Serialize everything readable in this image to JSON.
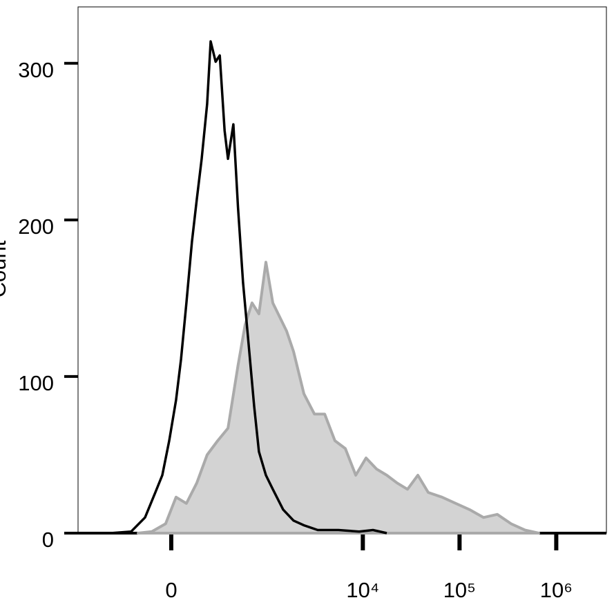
{
  "chart_data": {
    "type": "histogram-overlay",
    "y_label": "Count",
    "xscale": "asinh",
    "xlim": [
      -950,
      3300000
    ],
    "ylim": [
      0,
      336
    ],
    "xticks": [
      0,
      {
        "value": 10000,
        "label": "10⁴"
      },
      {
        "value": 100000,
        "label": "10⁵"
      },
      {
        "value": 1000000,
        "label": "10⁶"
      }
    ],
    "yticks": [
      0,
      100,
      200,
      300
    ],
    "series": [
      {
        "color": "#000000",
        "filled": false,
        "x": [
          -420,
          -231,
          -139,
          -81,
          -45,
          -10,
          24,
          49,
          77,
          107,
          135,
          165,
          201,
          226,
          264,
          299,
          343,
          376,
          435,
          491,
          558,
          644,
          738,
          830,
          984,
          1164,
          1494,
          1914,
          2454,
          3413,
          5591,
          9165,
          12730,
          17680
        ],
        "values": [
          0,
          1,
          10,
          26,
          37,
          59,
          85,
          111,
          147,
          186,
          213,
          239,
          274,
          314,
          301,
          305,
          257,
          239,
          261,
          208,
          160,
          120,
          81,
          52,
          37,
          28,
          15,
          8,
          5,
          2,
          2,
          1,
          2,
          0
        ]
      },
      {
        "color": "#aaaaaa",
        "fill": "#d3d3d3",
        "filled": true,
        "x": [
          -183,
          -100,
          -28,
          24,
          77,
          135,
          201,
          281,
          376,
          491,
          589,
          700,
          830,
          984,
          1164,
          1375,
          1624,
          1914,
          2454,
          3156,
          4027,
          5141,
          6594,
          8444,
          10800,
          13820,
          17680,
          22630,
          28970,
          37090,
          47450,
          65840,
          91540,
          127100,
          176600,
          245400,
          341300,
          474000,
          658800
        ],
        "values": [
          0,
          1,
          6,
          23,
          19,
          32,
          50,
          59,
          67,
          107,
          133,
          147,
          140,
          173,
          147,
          138,
          129,
          116,
          89,
          76,
          76,
          59,
          54,
          37,
          48,
          41,
          37,
          32,
          28,
          37,
          26,
          23,
          19,
          15,
          10,
          12,
          6,
          2,
          0
        ]
      }
    ]
  }
}
